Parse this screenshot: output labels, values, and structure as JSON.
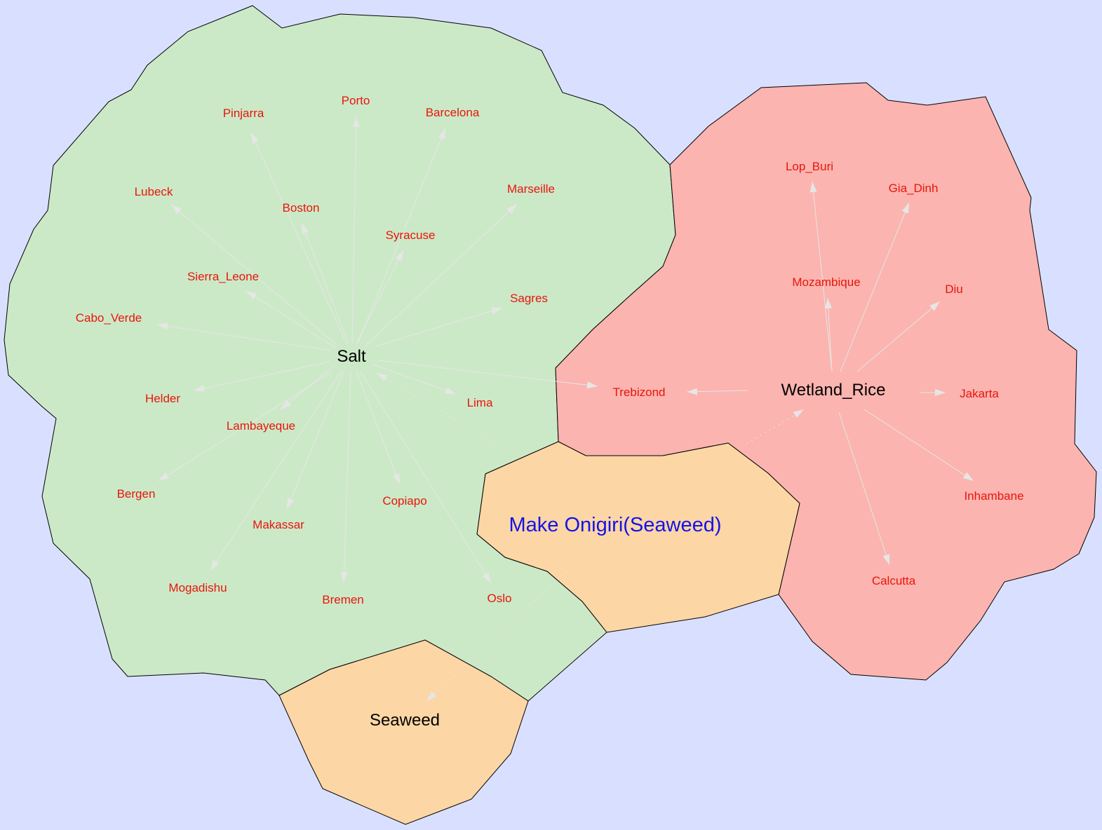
{
  "colors": {
    "background": "#d9e0ff",
    "salt_region": "#cce9c7",
    "rice_region": "#fbb4af",
    "seaweed_region": "#fdd6a6",
    "onigiri_region": "#fdd6a6",
    "city_label": "#e8150c",
    "hub_label": "#000000",
    "recipe_label": "#1414e6",
    "edge": "#e6e6e6"
  },
  "regions": {
    "salt": {
      "hub": "Salt"
    },
    "wetland_rice": {
      "hub": "Wetland_Rice"
    },
    "seaweed": {
      "hub": "Seaweed"
    },
    "onigiri": {
      "label": "Make Onigiri(Seaweed)"
    }
  },
  "salt_cities": [
    "Porto",
    "Pinjarra",
    "Barcelona",
    "Lubeck",
    "Marseille",
    "Boston",
    "Syracuse",
    "Sierra_Leone",
    "Sagres",
    "Cabo_Verde",
    "Lima",
    "Helder",
    "Lambayeque",
    "Bergen",
    "Copiapo",
    "Makassar",
    "Mogadishu",
    "Bremen",
    "Oslo"
  ],
  "rice_cities": [
    "Lop_Buri",
    "Gia_Dinh",
    "Mozambique",
    "Diu",
    "Jakarta",
    "Inhambane",
    "Calcutta"
  ],
  "shared_cities": [
    "Trebizond"
  ],
  "links": [
    {
      "from": "Seaweed",
      "to": "Make Onigiri(Seaweed)"
    },
    {
      "from": "Make Onigiri(Seaweed)",
      "to": "Salt"
    },
    {
      "from": "Make Onigiri(Seaweed)",
      "to": "Wetland_Rice"
    }
  ]
}
